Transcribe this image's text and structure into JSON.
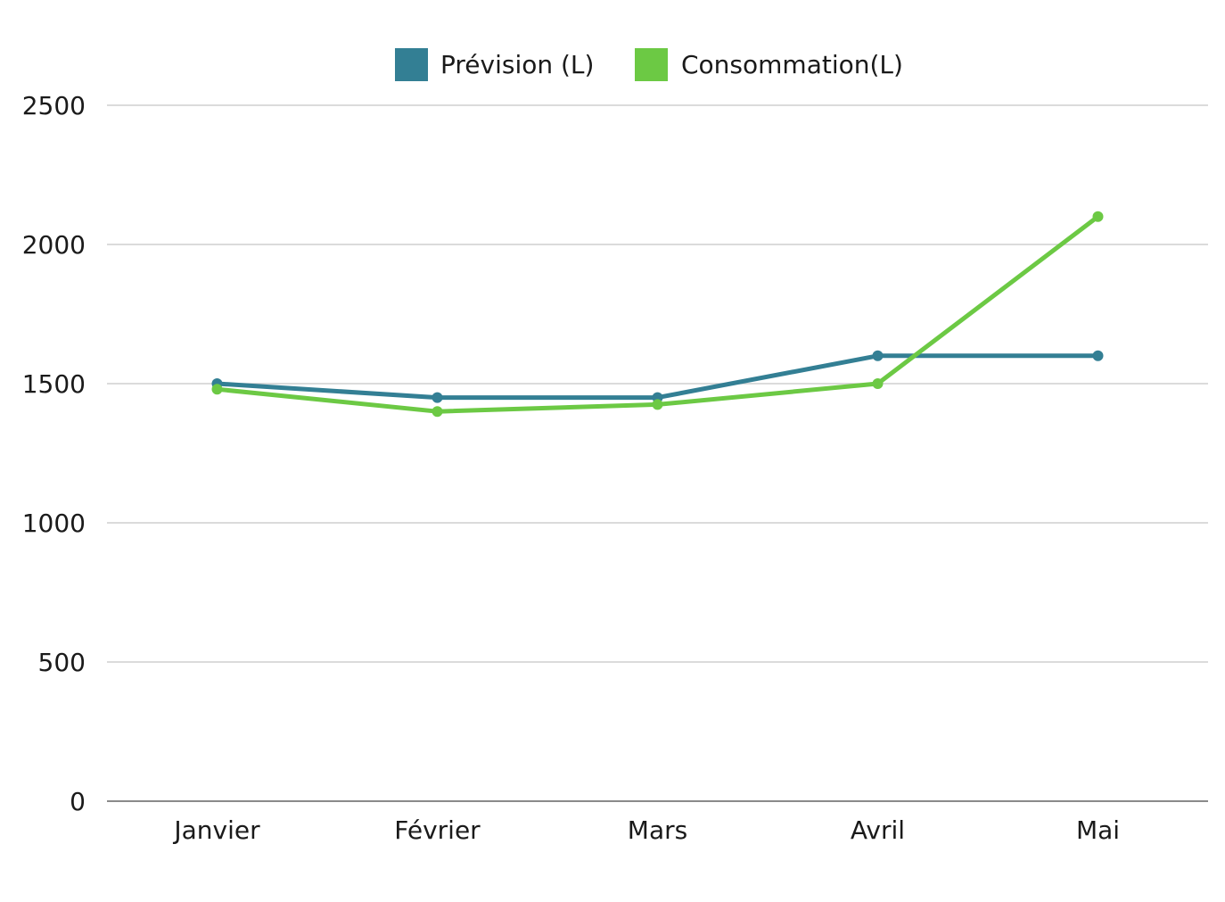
{
  "chart_data": {
    "type": "line",
    "title": "",
    "xlabel": "",
    "ylabel": "",
    "categories": [
      "Janvier",
      "Février",
      "Mars",
      "Avril",
      "Mai"
    ],
    "series": [
      {
        "name": "Prévision (L)",
        "color": "#337f94",
        "values": [
          1500,
          1450,
          1450,
          1600,
          1600
        ]
      },
      {
        "name": "Consommation(L)",
        "color": "#6cc944",
        "values": [
          1480,
          1400,
          1425,
          1500,
          2100
        ]
      }
    ],
    "yticks": [
      0,
      500,
      1000,
      1500,
      2000,
      2500
    ],
    "ylim": [
      0,
      2500
    ],
    "grid": true,
    "legend_position": "top-center"
  }
}
